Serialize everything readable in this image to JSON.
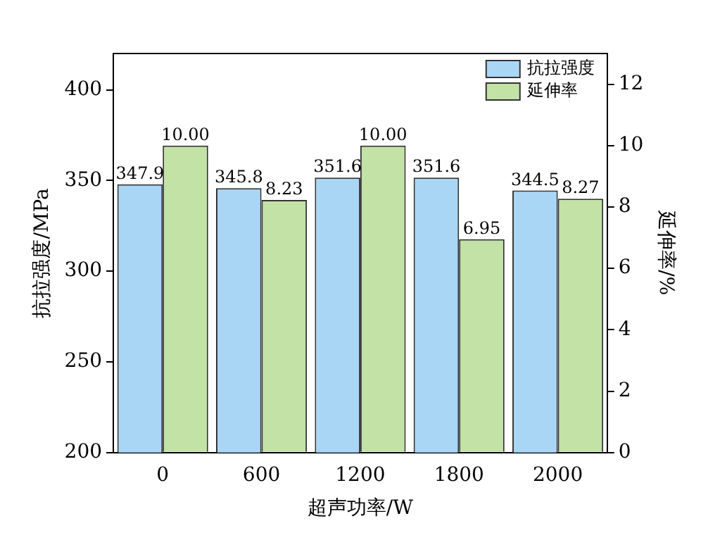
{
  "chart_data": {
    "type": "bar",
    "xlabel": "超声功率/W",
    "ylabel": "抗拉强度/MPa",
    "y2label": "延伸率/%",
    "categories": [
      "0",
      "600",
      "1200",
      "1800",
      "2000"
    ],
    "series": [
      {
        "name": "抗拉强度",
        "color": "#a9d6f5",
        "values": [
          347.9,
          345.8,
          351.6,
          351.6,
          344.5
        ],
        "value_labels": [
          "347.9",
          "345.8",
          "351.6",
          "351.6",
          "344.5"
        ]
      },
      {
        "name": "延伸率",
        "color": "#c2e2a6",
        "axis": "y2",
        "values": [
          10.0,
          8.23,
          10.0,
          6.95,
          8.27
        ],
        "value_labels": [
          "10.00",
          "8.23",
          "10.00",
          "6.95",
          "8.27"
        ]
      }
    ],
    "ylim": [
      200,
      420
    ],
    "yticks": [
      200,
      250,
      300,
      350,
      400
    ],
    "y2lim": [
      0,
      13
    ],
    "y2ticks": [
      0,
      2,
      4,
      6,
      8,
      10,
      12
    ],
    "legend": "top right",
    "grid": false
  }
}
